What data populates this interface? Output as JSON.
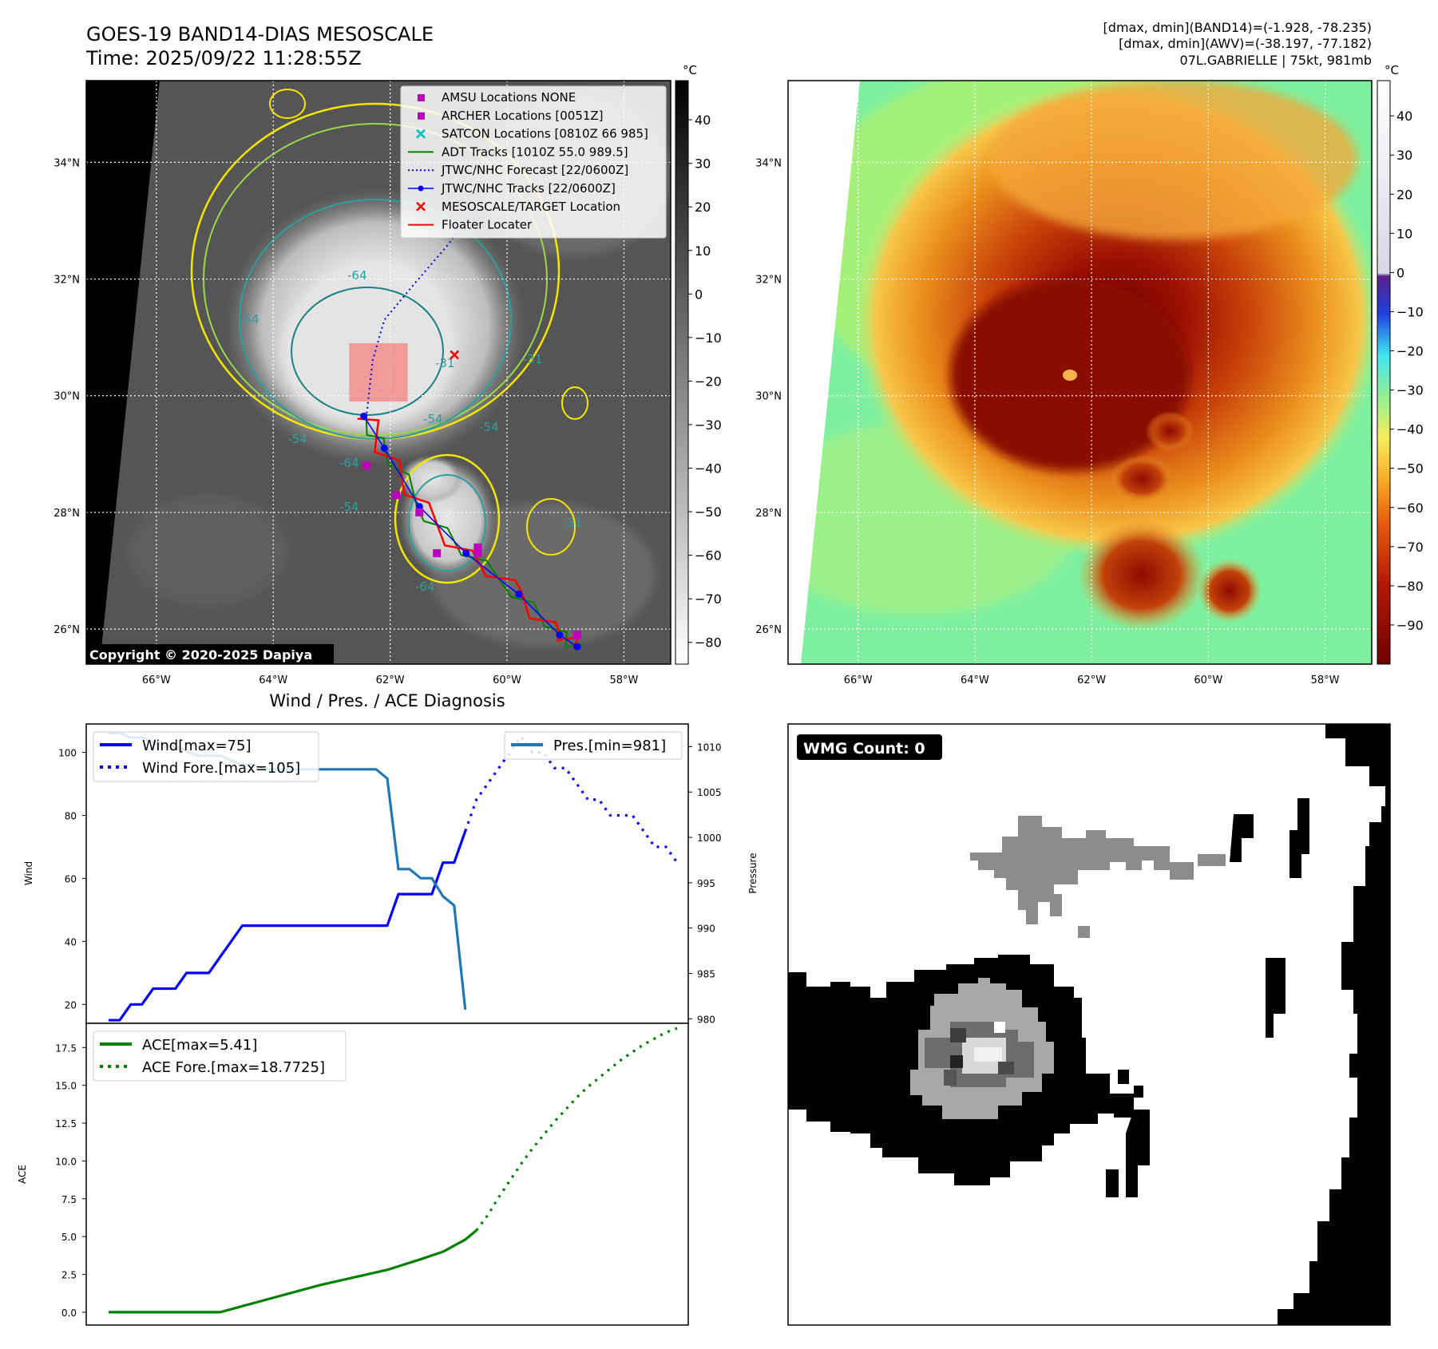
{
  "header": {
    "title": "GOES-19 BAND14-DIAS MESOSCALE",
    "time": "Time: 2025/09/22 11:28:55Z",
    "band14_range": "[dmax, dmin](BAND14)=(-1.928, -78.235)",
    "awv_range": "[dmax, dmin](AWV)=(-38.197, -77.182)",
    "storm": "07L.GABRIELLE | 75kt, 981mb"
  },
  "map": {
    "lon_labels": [
      "66°W",
      "64°W",
      "62°W",
      "60°W",
      "58°W"
    ],
    "lon_values": [
      -66,
      -64,
      -62,
      -60,
      -58
    ],
    "lat_labels": [
      "34°N",
      "32°N",
      "30°N",
      "28°N",
      "26°N"
    ],
    "lat_values": [
      34,
      32,
      30,
      28,
      26
    ],
    "lon_range": [
      -67.2,
      -57.2
    ],
    "lat_range": [
      25.4,
      35.4
    ],
    "copyright": "Copyright © 2020-2025 Dapiya",
    "contour_labels": [
      "-54",
      "-64",
      "-54",
      "-31",
      "-54",
      "-64",
      "-54",
      "-31",
      "-64",
      "-31",
      "-54"
    ],
    "legend": [
      {
        "label": "AMSU Locations NONE",
        "kind": "square",
        "color": "#bf00bf"
      },
      {
        "label": "ARCHER Locations [0051Z]",
        "kind": "square",
        "color": "#bf00bf"
      },
      {
        "label": "SATCON Locations [0810Z 66 985]",
        "kind": "x",
        "color": "#00bfbf"
      },
      {
        "label": "ADT Tracks [1010Z 55.0 989.5]",
        "kind": "line",
        "color": "#008000"
      },
      {
        "label": "JTWC/NHC Forecast [22/0600Z]",
        "kind": "dotted",
        "color": "#0000ff"
      },
      {
        "label": "JTWC/NHC Tracks [22/0600Z]",
        "kind": "dotline",
        "color": "#0000ff"
      },
      {
        "label": "MESOSCALE/TARGET Location",
        "kind": "x",
        "color": "#ff0000"
      },
      {
        "label": "Floater Locater",
        "kind": "line",
        "color": "#ff0000"
      }
    ],
    "nhc_track": [
      [
        -58.8,
        25.7
      ],
      [
        -59.1,
        25.9
      ],
      [
        -59.8,
        26.6
      ],
      [
        -60.7,
        27.3
      ],
      [
        -61.5,
        28.1
      ],
      [
        -62.1,
        29.1
      ],
      [
        -62.45,
        29.65
      ]
    ],
    "nhc_forecast": [
      [
        -62.4,
        29.7
      ],
      [
        -62.3,
        30.6
      ],
      [
        -62.1,
        31.3
      ],
      [
        -61.6,
        31.9
      ],
      [
        -61.0,
        32.6
      ],
      [
        -60.5,
        33.3
      ]
    ],
    "archer_points": [
      [
        -62.4,
        28.8
      ],
      [
        -61.9,
        28.3
      ],
      [
        -61.5,
        28.0
      ],
      [
        -61.2,
        27.3
      ],
      [
        -60.5,
        27.3
      ],
      [
        -60.5,
        27.4
      ],
      [
        -58.8,
        25.9
      ]
    ],
    "target_location": [
      -60.9,
      30.7
    ],
    "floater_box": [
      [
        -62.7,
        29.9
      ],
      [
        -61.7,
        30.9
      ]
    ]
  },
  "colorbar_gray": {
    "unit": "°C",
    "ticks": [
      "40",
      "30",
      "20",
      "10",
      "0",
      "−10",
      "−20",
      "−30",
      "−40",
      "−50",
      "−60",
      "−70",
      "−80"
    ],
    "tick_values": [
      40,
      30,
      20,
      10,
      0,
      -10,
      -20,
      -30,
      -40,
      -50,
      -60,
      -70,
      -80
    ],
    "range": [
      -85,
      49
    ]
  },
  "colorbar_color": {
    "unit": "°C",
    "ticks": [
      "40",
      "30",
      "20",
      "10",
      "0",
      "−10",
      "−20",
      "−30",
      "−40",
      "−50",
      "−60",
      "−70",
      "−80",
      "−90"
    ],
    "tick_values": [
      40,
      30,
      20,
      10,
      0,
      -10,
      -20,
      -30,
      -40,
      -50,
      -60,
      -70,
      -80,
      -90
    ],
    "range": [
      -100,
      49
    ]
  },
  "diagnosis": {
    "title": "Wind / Pres. / ACE Diagnosis",
    "wind_axis_label": "Wind",
    "pressure_axis_label": "Pressure",
    "ace_axis_label": "ACE",
    "wind_ticks": [
      "100",
      "80",
      "60",
      "40",
      "20"
    ],
    "pressure_ticks": [
      "1010",
      "1005",
      "1000",
      "995",
      "990",
      "985",
      "980"
    ],
    "ace_ticks": [
      "17.5",
      "15.0",
      "12.5",
      "10.0",
      "7.5",
      "5.0",
      "2.5",
      "0.0"
    ],
    "legend": {
      "wind": "Wind[max=75]",
      "wind_forecast": "Wind Fore.[max=105]",
      "pressure": "Pres.[min=981]",
      "ace": "ACE[max=5.41]",
      "ace_forecast": "ACE Fore.[max=18.7725]"
    }
  },
  "chart_data": [
    {
      "type": "line",
      "title": "Wind / Pres. / ACE Diagnosis",
      "ylabel": "Wind",
      "y2label": "Pressure",
      "ylim": [
        14,
        109
      ],
      "y2lim": [
        979.5,
        1012.5
      ],
      "xlim": [
        -1,
        53
      ],
      "series": [
        {
          "name": "Wind[max=75]",
          "color": "#0000ff",
          "style": "solid",
          "axis": "left",
          "points": [
            [
              1,
              15
            ],
            [
              2,
              15
            ],
            [
              3,
              20
            ],
            [
              4,
              20
            ],
            [
              5,
              25
            ],
            [
              6,
              25
            ],
            [
              7,
              25
            ],
            [
              8,
              30
            ],
            [
              9,
              30
            ],
            [
              10,
              30
            ],
            [
              11,
              35
            ],
            [
              12,
              40
            ],
            [
              13,
              45
            ],
            [
              14,
              45
            ],
            [
              15,
              45
            ],
            [
              16,
              45
            ],
            [
              17,
              45
            ],
            [
              18,
              45
            ],
            [
              19,
              45
            ],
            [
              20,
              45
            ],
            [
              21,
              45
            ],
            [
              22,
              45
            ],
            [
              23,
              45
            ],
            [
              24,
              45
            ],
            [
              25,
              45
            ],
            [
              26,
              45
            ],
            [
              27,
              55
            ],
            [
              28,
              55
            ],
            [
              29,
              55
            ],
            [
              30,
              55
            ],
            [
              31,
              65
            ],
            [
              32,
              65
            ],
            [
              33,
              75
            ]
          ]
        },
        {
          "name": "Wind Fore.[max=105]",
          "color": "#0000ff",
          "style": "dotted",
          "axis": "left",
          "points": [
            [
              33,
              75
            ],
            [
              34,
              85
            ],
            [
              35,
              90
            ],
            [
              36,
              95
            ],
            [
              37,
              100
            ],
            [
              38,
              105
            ],
            [
              39,
              100
            ],
            [
              40,
              100
            ],
            [
              41,
              95
            ],
            [
              42,
              95
            ],
            [
              43,
              90
            ],
            [
              44,
              85
            ],
            [
              45,
              85
            ],
            [
              46,
              80
            ],
            [
              47,
              80
            ],
            [
              48,
              80
            ],
            [
              49,
              75
            ],
            [
              50,
              70
            ],
            [
              51,
              70
            ],
            [
              52,
              65
            ]
          ]
        },
        {
          "name": "Pres.[min=981]",
          "color": "#1f77b4",
          "style": "solid",
          "axis": "right",
          "points": [
            [
              1,
              1011.5
            ],
            [
              2,
              1011.5
            ],
            [
              3,
              1011
            ],
            [
              4,
              1011
            ],
            [
              5,
              1010.5
            ],
            [
              6,
              1010
            ],
            [
              7,
              1010
            ],
            [
              8,
              1009.5
            ],
            [
              9,
              1009
            ],
            [
              10,
              1009
            ],
            [
              11,
              1009
            ],
            [
              12,
              1008.5
            ],
            [
              13,
              1008
            ],
            [
              14,
              1008
            ],
            [
              15,
              1007.5
            ],
            [
              16,
              1007.5
            ],
            [
              17,
              1007.5
            ],
            [
              18,
              1007.5
            ],
            [
              19,
              1007.5
            ],
            [
              20,
              1007.5
            ],
            [
              21,
              1007.5
            ],
            [
              22,
              1007.5
            ],
            [
              23,
              1007.5
            ],
            [
              24,
              1007.5
            ],
            [
              25,
              1007.5
            ],
            [
              26,
              1006.5
            ],
            [
              27,
              996.5
            ],
            [
              28,
              996.5
            ],
            [
              29,
              995.5
            ],
            [
              30,
              995.5
            ],
            [
              31,
              993.5
            ],
            [
              32,
              992.5
            ],
            [
              33,
              981
            ]
          ]
        }
      ]
    },
    {
      "type": "line",
      "ylabel": "ACE",
      "ylim": [
        -0.85,
        19.1
      ],
      "xlim": [
        -1,
        53
      ],
      "series": [
        {
          "name": "ACE[max=5.41]",
          "color": "#008000",
          "style": "solid",
          "points": [
            [
              1,
              0
            ],
            [
              6,
              0
            ],
            [
              11,
              0
            ],
            [
              15,
              0.8
            ],
            [
              20,
              1.8
            ],
            [
              26,
              2.8
            ],
            [
              29,
              3.5
            ],
            [
              31,
              4.0
            ],
            [
              33,
              4.8
            ],
            [
              34,
              5.41
            ]
          ]
        },
        {
          "name": "ACE Fore.[max=18.7725]",
          "color": "#008000",
          "style": "dotted",
          "points": [
            [
              34,
              5.41
            ],
            [
              35,
              6.4
            ],
            [
              36,
              7.6
            ],
            [
              37,
              8.7
            ],
            [
              38,
              9.8
            ],
            [
              39,
              10.8
            ],
            [
              40,
              11.7
            ],
            [
              41,
              12.6
            ],
            [
              42,
              13.4
            ],
            [
              43,
              14.2
            ],
            [
              44,
              14.9
            ],
            [
              45,
              15.5
            ],
            [
              46,
              16.1
            ],
            [
              47,
              16.7
            ],
            [
              48,
              17.2
            ],
            [
              49,
              17.7
            ],
            [
              50,
              18.1
            ],
            [
              51,
              18.5
            ],
            [
              52,
              18.7725
            ]
          ]
        }
      ]
    }
  ],
  "wmg": {
    "label": "WMG Count: 0"
  }
}
